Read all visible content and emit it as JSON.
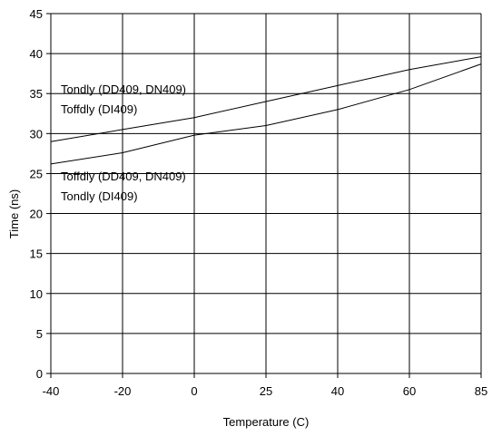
{
  "chart_data": {
    "type": "line",
    "title": "",
    "xlabel": "Temperature (C)",
    "ylabel": "Time (ns)",
    "categories": [
      "-40",
      "-20",
      "0",
      "25",
      "40",
      "60",
      "85"
    ],
    "ylim": [
      0,
      45
    ],
    "yticks": [
      "0",
      "5",
      "10",
      "15",
      "20",
      "25",
      "30",
      "35",
      "40",
      "45"
    ],
    "grid": true,
    "series": [
      {
        "values": [
          29.0,
          30.5,
          32.0,
          34.0,
          36.0,
          38.0,
          39.6
        ]
      },
      {
        "values": [
          26.2,
          27.6,
          29.8,
          31.0,
          33.0,
          35.5,
          38.7
        ]
      }
    ],
    "annotations": [
      "Tondly (DD409, DN409)",
      "Toffdly (DI409)",
      "Toffdly (DD409, DN409)",
      "Tondly (DI409)"
    ],
    "colors": {
      "line": "#000000",
      "grid": "#000000",
      "background": "#ffffff"
    }
  }
}
